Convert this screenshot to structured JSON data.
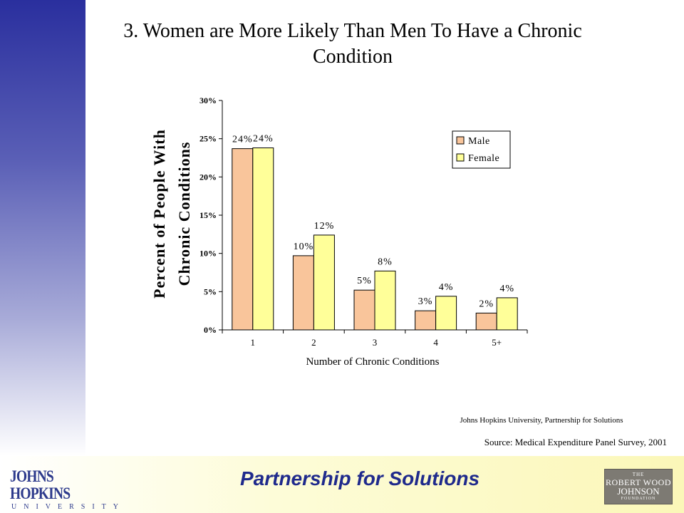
{
  "slide": {
    "title": "3. Women are More Likely Than Men To Have a Chronic Condition",
    "credit": "Johns Hopkins University, Partnership for Solutions",
    "source": "Source: Medical Expenditure Panel Survey, 2001",
    "tagline": "Partnership for Solutions",
    "left_logo": {
      "name": "JOHNS HOPKINS",
      "sub": "UNIVERSITY"
    },
    "right_logo": {
      "l1": "THE",
      "l2": "ROBERT WOOD",
      "l3": "JOHNSON",
      "l4": "FOUNDATION"
    }
  },
  "chart_data": {
    "type": "bar",
    "title": "",
    "xlabel": "Number of Chronic Conditions",
    "ylabel_lines": [
      "Percent of People With",
      "Chronic Conditions"
    ],
    "categories": [
      "1",
      "2",
      "3",
      "4",
      "5+"
    ],
    "series": [
      {
        "name": "Male",
        "color": "#f9c59b",
        "values": [
          23.7,
          9.7,
          5.2,
          2.5,
          2.2
        ],
        "labels": [
          "24%",
          "10%",
          "5%",
          "3%",
          "2%"
        ]
      },
      {
        "name": "Female",
        "color": "#ffff99",
        "values": [
          23.8,
          12.4,
          7.7,
          4.4,
          4.2
        ],
        "labels": [
          "24%",
          "12%",
          "8%",
          "4%",
          "4%"
        ]
      }
    ],
    "ylim": [
      0,
      30
    ],
    "yticks": [
      0,
      5,
      10,
      15,
      20,
      25,
      30
    ],
    "ytick_labels": [
      "0%",
      "5%",
      "10%",
      "15%",
      "20%",
      "25%",
      "30%"
    ],
    "legend_position": "top-right",
    "grid": false
  }
}
